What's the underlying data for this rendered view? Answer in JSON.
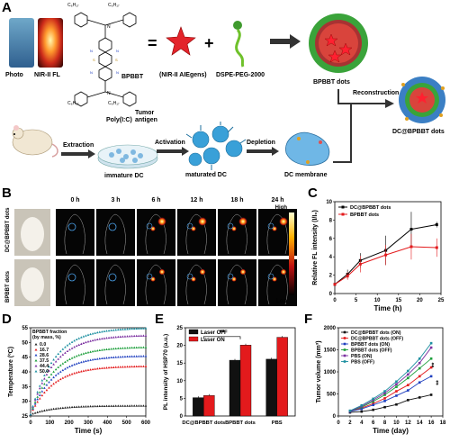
{
  "panelA": {
    "letter": "A",
    "photo_label": "Photo",
    "nirfl_label": "NIR-II FL",
    "molecule_name": "BPBBT",
    "aiegen_label": "(NIR-II AIEgens)",
    "peg_label": "DSPE-PEG-2000",
    "dots_label": "BPBBT dots",
    "reconstruction_label": "Reconstruction",
    "product_label": "DC@BPBBT dots",
    "extraction_label": "Extraction",
    "polyic_label": "Poly(I:C)",
    "tumor_antigen_label": "Tumor antigen",
    "activation_label": "Activation",
    "depletion_label": "Depletion",
    "immature_label": "immature DC",
    "matured_label": "maturated DC",
    "membrane_label": "DC membrane",
    "chem_groups": [
      "C₆H₁₇",
      "C₆H₁₇",
      "C₆H₁₇",
      "C₆H₁₇"
    ]
  },
  "panelB": {
    "letter": "B",
    "timepoints": [
      "0 h",
      "3 h",
      "6 h",
      "12 h",
      "18 h",
      "24 h"
    ],
    "rows": [
      "DC@BPBBT dots",
      "BPBBT dots"
    ],
    "scale_high": "High",
    "scale_low": "Low"
  },
  "chart_data": [
    {
      "panel": "C",
      "type": "line",
      "xlabel": "Time (h)",
      "ylabel": "Relative FL intensity (I/I₀)",
      "xlim": [
        0,
        25
      ],
      "ylim": [
        0,
        10
      ],
      "xticks": [
        0,
        5,
        10,
        15,
        20,
        25
      ],
      "yticks": [
        0,
        2,
        4,
        6,
        8,
        10
      ],
      "x": [
        0,
        3,
        6,
        12,
        18,
        24
      ],
      "series": [
        {
          "name": "DC@BPBBT dots",
          "color": "#000000",
          "values": [
            1.0,
            2.1,
            3.6,
            4.7,
            7.0,
            7.5
          ],
          "err": [
            0.1,
            0.5,
            0.8,
            1.6,
            1.9,
            0.3
          ]
        },
        {
          "name": "BPBBT dots",
          "color": "#e31a1c",
          "values": [
            1.0,
            1.9,
            3.2,
            4.2,
            5.1,
            5.0
          ],
          "err": [
            0.1,
            0.4,
            0.9,
            1.1,
            1.4,
            1.0
          ]
        }
      ]
    },
    {
      "panel": "D",
      "type": "scatter",
      "xlabel": "Time (s)",
      "ylabel": "Temperature (ºC)",
      "xlim": [
        0,
        600
      ],
      "ylim": [
        25,
        55
      ],
      "xticks": [
        0,
        100,
        200,
        300,
        400,
        500,
        600
      ],
      "yticks": [
        25,
        30,
        35,
        40,
        45,
        50,
        55
      ],
      "legend_title": "BPBBT fraction\n(by mass, %)",
      "series": [
        {
          "name": "0.0",
          "color": "#222222",
          "start": 25.5,
          "plateau": 28.5
        },
        {
          "name": "16.7",
          "color": "#e31a1c",
          "start": 25.5,
          "plateau": 42.0
        },
        {
          "name": "28.6",
          "color": "#1f3fbf",
          "start": 25.5,
          "plateau": 45.5
        },
        {
          "name": "37.5",
          "color": "#1b9e3a",
          "start": 25.5,
          "plateau": 48.5
        },
        {
          "name": "44.4",
          "color": "#7b2fa0",
          "start": 25.5,
          "plateau": 52.5
        },
        {
          "name": "50.0",
          "color": "#1b8fa0",
          "start": 25.5,
          "plateau": 55.0
        }
      ]
    },
    {
      "panel": "E",
      "type": "bar",
      "xlabel": "",
      "ylabel": "PL intensity of HSP70 (a.u.)",
      "ylim": [
        0,
        25
      ],
      "yticks": [
        0,
        5,
        10,
        15,
        20,
        25
      ],
      "categories": [
        "DC@BPBBT dots",
        "BPBBT dots",
        "PBS"
      ],
      "significance": "**",
      "series": [
        {
          "name": "Laser OFF",
          "color": "#111111",
          "values": [
            5.2,
            15.8,
            16.1
          ]
        },
        {
          "name": "Laser ON",
          "color": "#e31a1c",
          "values": [
            5.8,
            20.1,
            22.3
          ]
        }
      ]
    },
    {
      "panel": "F",
      "type": "line",
      "xlabel": "Time (day)",
      "ylabel": "Tumor volume (mm³)",
      "xlim": [
        0,
        18
      ],
      "ylim": [
        0,
        2000
      ],
      "xticks": [
        0,
        2,
        4,
        6,
        8,
        10,
        12,
        14,
        16,
        18
      ],
      "yticks": [
        0,
        500,
        1000,
        1500,
        2000
      ],
      "x": [
        2,
        4,
        6,
        8,
        10,
        12,
        14,
        16
      ],
      "significance": [
        "**",
        "**"
      ],
      "series": [
        {
          "name": "DC@BPBBT dots (ON)",
          "color": "#111111",
          "values": [
            80,
            100,
            140,
            200,
            260,
            360,
            420,
            480
          ]
        },
        {
          "name": "DC@BPBBT dots (OFF)",
          "color": "#e31a1c",
          "values": [
            100,
            180,
            280,
            400,
            560,
            700,
            900,
            1100
          ]
        },
        {
          "name": "BPBBT dots (ON)",
          "color": "#1f3fbf",
          "values": [
            100,
            160,
            250,
            340,
            460,
            580,
            760,
            900
          ]
        },
        {
          "name": "BPBBT dots (OFF)",
          "color": "#1b9e3a",
          "values": [
            110,
            200,
            330,
            480,
            660,
            860,
            1080,
            1300
          ]
        },
        {
          "name": "PBS (ON)",
          "color": "#7b2fa0",
          "values": [
            110,
            220,
            360,
            520,
            720,
            940,
            1200,
            1550
          ]
        },
        {
          "name": "PBS (OFF)",
          "color": "#1b8fa0",
          "values": [
            120,
            240,
            390,
            560,
            780,
            1020,
            1300,
            1650
          ]
        }
      ]
    }
  ]
}
